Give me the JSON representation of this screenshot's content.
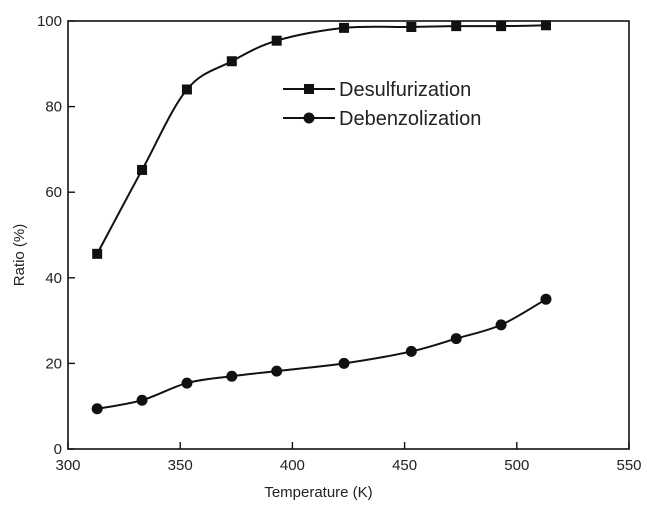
{
  "chart_data": {
    "type": "line",
    "xlabel": "Temperature (K)",
    "ylabel": "Ratio (%)",
    "xlim": [
      300,
      550
    ],
    "ylim": [
      0,
      100
    ],
    "xticks": [
      300,
      350,
      400,
      450,
      500,
      550
    ],
    "yticks": [
      0,
      20,
      40,
      60,
      80,
      100
    ],
    "grid": false,
    "legend_position": "top-center",
    "series": [
      {
        "name": "Desulfurization",
        "marker": "square",
        "color": "#111111",
        "x": [
          313,
          333,
          353,
          373,
          393,
          423,
          453,
          473,
          493,
          513
        ],
        "y": [
          45.6,
          65.2,
          84.0,
          90.6,
          95.4,
          98.4,
          98.6,
          98.8,
          98.8,
          99.0
        ]
      },
      {
        "name": "Debenzolization",
        "marker": "circle",
        "color": "#111111",
        "x": [
          313,
          333,
          353,
          373,
          393,
          423,
          453,
          473,
          493,
          513
        ],
        "y": [
          9.4,
          11.4,
          15.4,
          17.0,
          18.2,
          20.0,
          22.8,
          25.8,
          29.0,
          35.0
        ]
      }
    ]
  }
}
